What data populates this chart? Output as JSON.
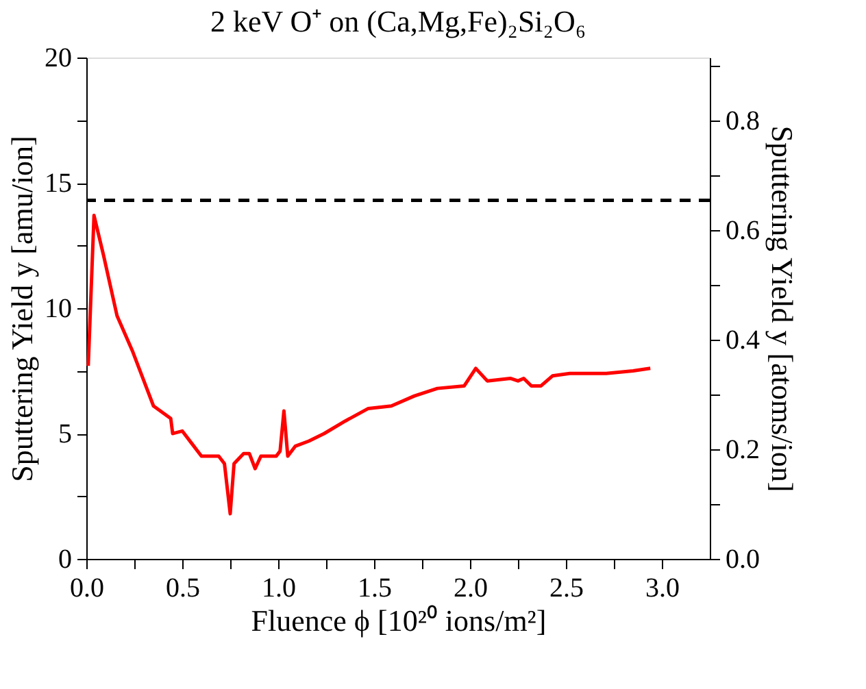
{
  "chart_data": {
    "type": "line",
    "title": "2 keV O⁺ on (Ca,Mg,Fe)₂Si₂O₆",
    "xlabel": "Fluence ϕ [10²⁰ ions/m²]",
    "ylabel": "Sputtering Yield y [amu/ion]",
    "y2label": "Sputtering Yield y [atoms/ion]",
    "series": [
      {
        "color": "#ff0000",
        "x": [
          0.01,
          0.04,
          0.09,
          0.16,
          0.24,
          0.3,
          0.35,
          0.44,
          0.45,
          0.5,
          0.55,
          0.6,
          0.69,
          0.72,
          0.75,
          0.77,
          0.82,
          0.85,
          0.88,
          0.91,
          0.99,
          1.01,
          1.03,
          1.05,
          1.09,
          1.16,
          1.24,
          1.35,
          1.47,
          1.59,
          1.71,
          1.83,
          1.97,
          2.03,
          2.09,
          2.21,
          2.25,
          2.28,
          2.32,
          2.37,
          2.43,
          2.52,
          2.71,
          2.85,
          2.94
        ],
        "values": [
          7.7,
          13.7,
          12.1,
          9.7,
          8.3,
          7.1,
          6.1,
          5.6,
          5.0,
          5.1,
          4.6,
          4.1,
          4.1,
          3.8,
          1.8,
          3.8,
          4.2,
          4.2,
          3.6,
          4.1,
          4.1,
          4.3,
          5.9,
          4.1,
          4.5,
          4.7,
          5.0,
          5.5,
          6.0,
          6.1,
          6.5,
          6.8,
          6.9,
          7.6,
          7.1,
          7.2,
          7.1,
          7.2,
          6.9,
          6.9,
          7.3,
          7.4,
          7.4,
          7.5,
          7.6
        ]
      }
    ],
    "ref_lines": [
      {
        "axis": "y",
        "value": 14.3,
        "color": "#000000",
        "line_style": "dashed"
      }
    ],
    "xlim": [
      0,
      3.25
    ],
    "xticks": [
      {
        "value": 0,
        "label": "0.0"
      },
      {
        "value": 0.25,
        "label": null
      },
      0.5,
      {
        "value": 0.75,
        "label": null
      },
      {
        "value": 1,
        "label": "1.0"
      },
      {
        "value": 1.25,
        "label": null
      },
      1.5,
      {
        "value": 1.75,
        "label": null
      },
      {
        "value": 2,
        "label": "2.0"
      },
      {
        "value": 2.25,
        "label": null
      },
      2.5,
      {
        "value": 2.75,
        "label": null
      },
      {
        "value": 3,
        "label": "3.0"
      }
    ],
    "ylim": [
      0,
      20
    ],
    "yticks": [
      0,
      {
        "value": 2.5,
        "label": null
      },
      5,
      {
        "value": 7.5,
        "label": null
      },
      10,
      {
        "value": 12.5,
        "label": null
      },
      15,
      {
        "value": 17.5,
        "label": null
      },
      20
    ],
    "y2lim": [
      0,
      0.915
    ],
    "y2ticks": [
      {
        "value": 0,
        "label": "0.0"
      },
      {
        "value": 0.1,
        "label": null
      },
      0.2,
      {
        "value": 0.3,
        "label": null
      },
      0.4,
      {
        "value": 0.5,
        "label": null
      },
      0.6,
      {
        "value": 0.7,
        "label": null
      },
      0.8,
      {
        "value": 0.9,
        "label": null
      }
    ],
    "grid": false,
    "marker": "none",
    "line_style": "solid"
  }
}
